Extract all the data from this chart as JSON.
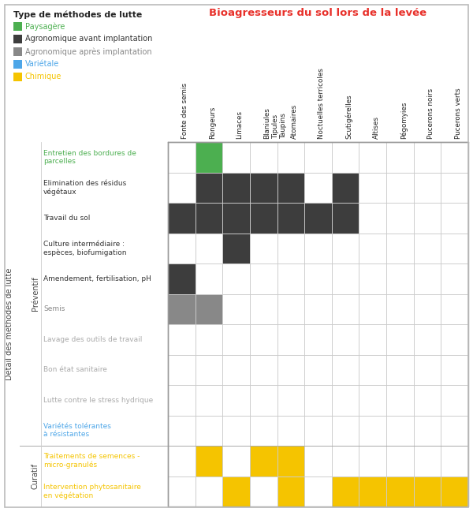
{
  "title": "Bioagresseurs du sol lors de la levée",
  "legend_title": "Type de méthodes de lutte",
  "legend_items": [
    {
      "label": "Paysagère",
      "color": "#4caf50",
      "text_color": "#4caf50"
    },
    {
      "label": "Agronomique avant implantation",
      "color": "#3d3d3d",
      "text_color": "#333333"
    },
    {
      "label": "Agronomique après implantation",
      "color": "#888888",
      "text_color": "#888888"
    },
    {
      "label": "Variétale",
      "color": "#4da6e8",
      "text_color": "#4da6e8"
    },
    {
      "label": "Chimique",
      "color": "#f5c400",
      "text_color": "#f5c400"
    }
  ],
  "col_headers": [
    "Fonte des semis",
    "Rongeurs",
    "Limaces",
    "Blaniules\nTipules\nTaupins",
    "Atomaires",
    "Noctuelles terricoles",
    "Scutigérelles",
    "Altises",
    "Pégomyies",
    "Pucerons noirs",
    "Pucerons verts"
  ],
  "rows": [
    {
      "label": "Entretien des bordures de\nparcelles",
      "label_color": "#4caf50",
      "cells": [
        0,
        4,
        0,
        0,
        0,
        0,
        0,
        0,
        0,
        0,
        0
      ],
      "group": "Préventif"
    },
    {
      "label": "Elimination des résidus\nvégétaux",
      "label_color": "#333333",
      "cells": [
        0,
        1,
        1,
        1,
        1,
        0,
        1,
        0,
        0,
        0,
        0
      ],
      "group": "Préventif"
    },
    {
      "label": "Travail du sol",
      "label_color": "#333333",
      "cells": [
        1,
        1,
        1,
        1,
        1,
        1,
        1,
        0,
        0,
        0,
        0
      ],
      "group": "Préventif"
    },
    {
      "label": "Culture intermédiaire :\nespèces, biofumigation",
      "label_color": "#333333",
      "cells": [
        0,
        0,
        1,
        0,
        0,
        0,
        0,
        0,
        0,
        0,
        0
      ],
      "group": "Préventif"
    },
    {
      "label": "Amendement, fertilisation, pH",
      "label_color": "#333333",
      "cells": [
        1,
        0,
        0,
        0,
        0,
        0,
        0,
        0,
        0,
        0,
        0
      ],
      "group": "Préventif"
    },
    {
      "label": "Semis",
      "label_color": "#888888",
      "cells": [
        2,
        2,
        0,
        0,
        0,
        0,
        0,
        0,
        0,
        0,
        0
      ],
      "group": "Préventif"
    },
    {
      "label": "Lavage des outils de travail",
      "label_color": "#aaaaaa",
      "cells": [
        0,
        0,
        0,
        0,
        0,
        0,
        0,
        0,
        0,
        0,
        0
      ],
      "group": "Préventif"
    },
    {
      "label": "Bon état sanitaire",
      "label_color": "#aaaaaa",
      "cells": [
        0,
        0,
        0,
        0,
        0,
        0,
        0,
        0,
        0,
        0,
        0
      ],
      "group": "Préventif"
    },
    {
      "label": "Lutte contre le stress hydrique",
      "label_color": "#aaaaaa",
      "cells": [
        0,
        0,
        0,
        0,
        0,
        0,
        0,
        0,
        0,
        0,
        0
      ],
      "group": "Préventif"
    },
    {
      "label": "Variétés tolérantes\nà résistantes",
      "label_color": "#4da6e8",
      "cells": [
        0,
        0,
        0,
        0,
        0,
        0,
        0,
        0,
        0,
        0,
        0
      ],
      "group": "Préventif"
    },
    {
      "label": "Traitements de semences -\nmicro-granulés",
      "label_color": "#f5c400",
      "cells": [
        0,
        3,
        0,
        3,
        3,
        0,
        0,
        0,
        0,
        0,
        0
      ],
      "group": "Curatif"
    },
    {
      "label": "Intervention phytosanitaire\nen végétation",
      "label_color": "#f5c400",
      "cells": [
        0,
        0,
        3,
        0,
        3,
        0,
        3,
        3,
        3,
        3,
        3
      ],
      "group": "Curatif"
    }
  ],
  "color_map": {
    "0": "none",
    "1": "#3d3d3d",
    "2": "#888888",
    "3": "#f5c400",
    "4": "#4caf50"
  },
  "bg_color": "#ffffff",
  "grid_color": "#cccccc",
  "header_title_color": "#e8302a",
  "outer_border_color": "#bbbbbb"
}
